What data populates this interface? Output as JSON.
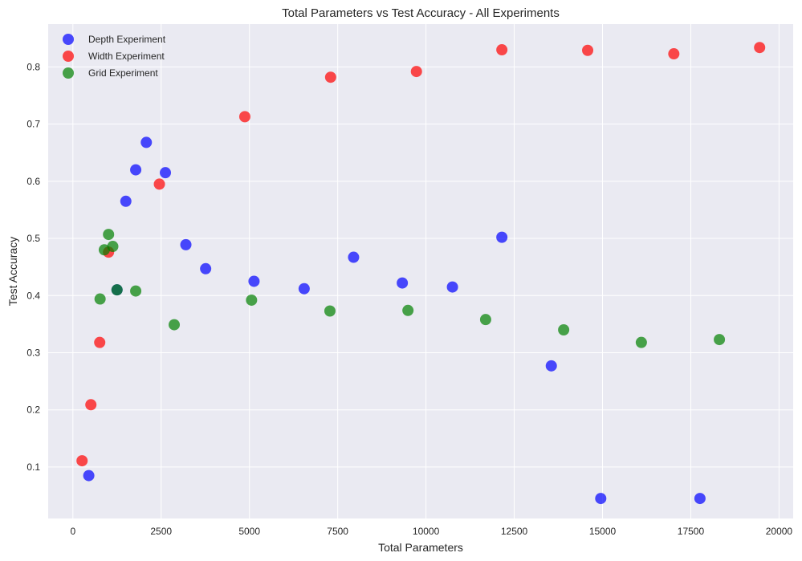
{
  "chart_data": {
    "type": "scatter",
    "title": "Total Parameters vs Test Accuracy - All Experiments",
    "xlabel": "Total Parameters",
    "ylabel": "Test Accuracy",
    "xlim": [
      -700,
      20400
    ],
    "ylim": [
      0.01,
      0.875
    ],
    "xticks": [
      0,
      2500,
      5000,
      7500,
      10000,
      12500,
      15000,
      17500,
      20000
    ],
    "yticks": [
      0.1,
      0.2,
      0.3,
      0.4,
      0.5,
      0.6,
      0.7,
      0.8
    ],
    "grid": true,
    "legend_position": "top-left",
    "series": [
      {
        "name": "Depth Experiment",
        "color": "#0000ff",
        "x": [
          450,
          1250,
          1500,
          1780,
          2080,
          2620,
          3200,
          3760,
          5130,
          6550,
          7950,
          9330,
          10750,
          12150,
          13550,
          14950,
          17760
        ],
        "y": [
          0.085,
          0.41,
          0.565,
          0.62,
          0.668,
          0.615,
          0.489,
          0.447,
          0.425,
          0.412,
          0.467,
          0.422,
          0.415,
          0.502,
          0.277,
          0.045,
          0.045
        ]
      },
      {
        "name": "Width Experiment",
        "color": "#ff0000",
        "x": [
          260,
          510,
          760,
          1010,
          2450,
          4870,
          7300,
          9730,
          12150,
          14580,
          17020,
          19450
        ],
        "y": [
          0.111,
          0.209,
          0.318,
          0.476,
          0.595,
          0.713,
          0.782,
          0.792,
          0.83,
          0.829,
          0.823,
          0.834
        ]
      },
      {
        "name": "Grid Experiment",
        "color": "#008000",
        "x": [
          770,
          890,
          1010,
          1130,
          1250,
          1780,
          2870,
          5060,
          7280,
          9490,
          11690,
          13900,
          16100,
          18310
        ],
        "y": [
          0.394,
          0.48,
          0.507,
          0.486,
          0.41,
          0.408,
          0.349,
          0.392,
          0.373,
          0.374,
          0.358,
          0.34,
          0.318,
          0.323
        ]
      }
    ]
  }
}
